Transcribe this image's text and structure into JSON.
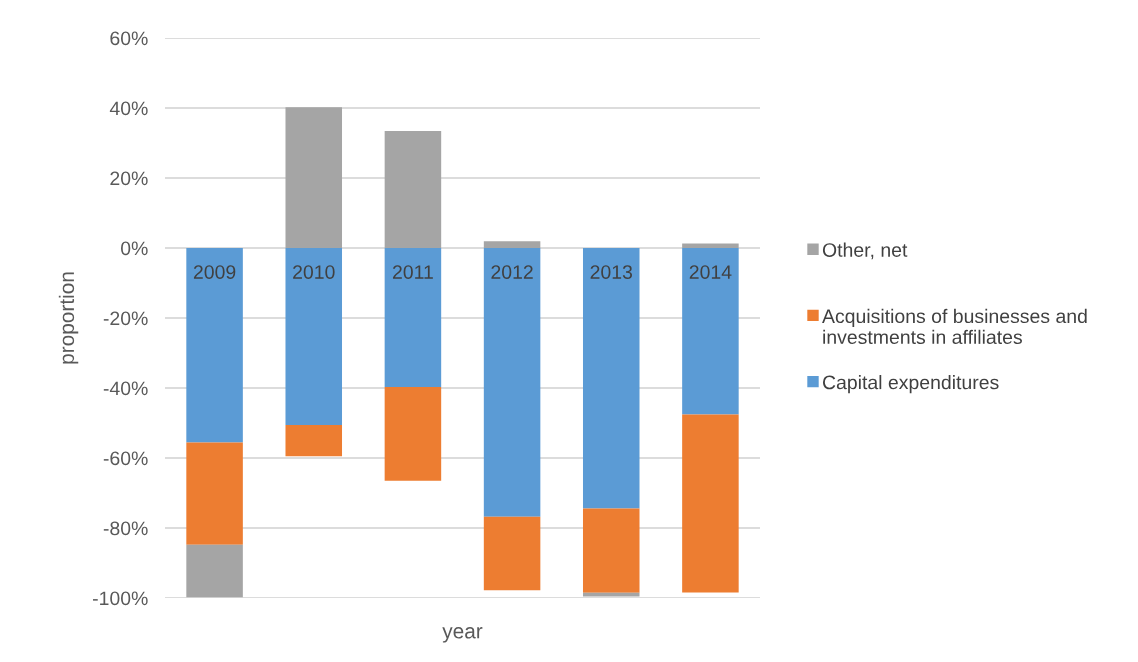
{
  "chart_data": {
    "type": "bar",
    "stacked": true,
    "xlabel": "year",
    "ylabel": "proportion",
    "categories": [
      "2009",
      "2010",
      "2011",
      "2012",
      "2013",
      "2014"
    ],
    "series": [
      {
        "name": "Capital expenditures",
        "color": "#5b9bd5",
        "values": [
          -55.6,
          -50.6,
          -39.7,
          -76.8,
          -74.4,
          -47.6
        ]
      },
      {
        "name": "Acquisitions of businesses and investments in affiliates",
        "color": "#ed7d31",
        "values": [
          -29.2,
          -8.9,
          -26.8,
          -21.0,
          -24.1,
          -50.8
        ]
      },
      {
        "name": "Other, net",
        "color": "#a5a5a5",
        "values": [
          -15.0,
          40.2,
          33.4,
          1.9,
          -1.1,
          1.3
        ]
      }
    ],
    "ylim": [
      -100,
      60
    ],
    "yticks": [
      {
        "value": -100,
        "label": "-100%"
      },
      {
        "value": -80,
        "label": "-80%"
      },
      {
        "value": -60,
        "label": "-60%"
      },
      {
        "value": -40,
        "label": "-40%"
      },
      {
        "value": -20,
        "label": "-20%"
      },
      {
        "value": 0,
        "label": "0%"
      },
      {
        "value": 20,
        "label": "20%"
      },
      {
        "value": 40,
        "label": "40%"
      },
      {
        "value": 60,
        "label": "60%"
      }
    ],
    "grid": "y",
    "legend": "right"
  }
}
